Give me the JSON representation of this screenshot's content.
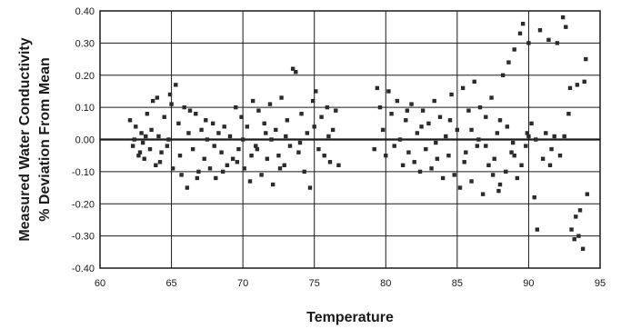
{
  "chart_data": {
    "type": "scatter",
    "title": "",
    "xlabel": "Temperature",
    "ylabel_lines": [
      "Measured Water Conductivity",
      "% Deviation From Mean"
    ],
    "xlim": [
      60,
      95
    ],
    "ylim": [
      -0.4,
      0.4
    ],
    "x_ticks": [
      60,
      65,
      70,
      75,
      80,
      85,
      90,
      95
    ],
    "x_tick_labels": [
      "60",
      "65",
      "70",
      "75",
      "80",
      "85",
      "90",
      "95"
    ],
    "y_ticks": [
      0.4,
      0.3,
      0.2,
      0.1,
      0.0,
      -0.1,
      -0.2,
      -0.3,
      -0.4
    ],
    "y_tick_labels": [
      "0.40",
      "0.30",
      "0.20",
      "0.10",
      "0.00",
      "-0.10",
      "-0.20",
      "-0.30",
      "-0.40"
    ],
    "grid": "both",
    "legend": "none",
    "marker_color": "#2b2b2b",
    "series": [
      {
        "points": [
          [
            62.1,
            0.06
          ],
          [
            62.3,
            -0.02
          ],
          [
            62.5,
            0.04
          ],
          [
            62.7,
            -0.05
          ],
          [
            62.9,
            0.02
          ],
          [
            63.1,
            -0.06
          ],
          [
            63.3,
            0.08
          ],
          [
            63.5,
            -0.03
          ],
          [
            63.7,
            0.12
          ],
          [
            63.9,
            -0.08
          ],
          [
            64.1,
            0.01
          ],
          [
            64.3,
            -0.04
          ],
          [
            64.5,
            0.07
          ],
          [
            64.7,
            -0.02
          ],
          [
            64.9,
            0.14
          ],
          [
            65.1,
            -0.09
          ],
          [
            65.3,
            0.17
          ],
          [
            65.5,
            0.05
          ],
          [
            65.7,
            -0.11
          ],
          [
            65.9,
            0.1
          ],
          [
            66.1,
            -0.15
          ],
          [
            66.3,
            0.09
          ],
          [
            66.5,
            -0.03
          ],
          [
            66.7,
            0.08
          ],
          [
            66.9,
            -0.1
          ],
          [
            67.1,
            0.03
          ],
          [
            67.3,
            -0.06
          ],
          [
            67.5,
            0.0
          ],
          [
            67.7,
            -0.09
          ],
          [
            67.9,
            0.05
          ],
          [
            68.1,
            -0.12
          ],
          [
            68.3,
            0.02
          ],
          [
            68.5,
            -0.04
          ],
          [
            68.7,
            0.04
          ],
          [
            68.9,
            -0.08
          ],
          [
            62.4,
            0.0
          ],
          [
            63.0,
            -0.01
          ],
          [
            63.6,
            0.03
          ],
          [
            64.2,
            -0.07
          ],
          [
            64.8,
            0.0
          ],
          [
            65.6,
            -0.05
          ],
          [
            66.2,
            0.02
          ],
          [
            66.8,
            -0.12
          ],
          [
            67.4,
            0.06
          ],
          [
            68.0,
            -0.02
          ],
          [
            68.6,
            -0.1
          ],
          [
            65.0,
            0.11
          ],
          [
            64.0,
            0.13
          ],
          [
            62.8,
            -0.04
          ],
          [
            63.2,
            0.01
          ],
          [
            69.1,
            0.01
          ],
          [
            69.3,
            -0.06
          ],
          [
            69.5,
            0.1
          ],
          [
            69.7,
            -0.03
          ],
          [
            69.9,
            0.07
          ],
          [
            70.1,
            -0.09
          ],
          [
            70.3,
            0.04
          ],
          [
            70.5,
            -0.13
          ],
          [
            70.7,
            0.12
          ],
          [
            70.9,
            -0.02
          ],
          [
            71.1,
            0.09
          ],
          [
            71.3,
            -0.11
          ],
          [
            71.5,
            0.05
          ],
          [
            71.7,
            -0.06
          ],
          [
            71.9,
            0.11
          ],
          [
            72.1,
            -0.14
          ],
          [
            72.3,
            0.03
          ],
          [
            72.5,
            -0.05
          ],
          [
            72.7,
            0.13
          ],
          [
            72.9,
            -0.08
          ],
          [
            73.1,
            0.06
          ],
          [
            73.3,
            -0.02
          ],
          [
            73.5,
            0.22
          ],
          [
            73.7,
            0.21
          ],
          [
            73.9,
            -0.04
          ],
          [
            74.1,
            0.08
          ],
          [
            74.3,
            -0.1
          ],
          [
            74.5,
            0.02
          ],
          [
            74.7,
            -0.15
          ],
          [
            74.9,
            0.12
          ],
          [
            75.1,
            0.15
          ],
          [
            75.3,
            -0.03
          ],
          [
            75.5,
            0.07
          ],
          [
            75.7,
            -0.05
          ],
          [
            75.9,
            0.1
          ],
          [
            76.1,
            -0.07
          ],
          [
            76.3,
            0.03
          ],
          [
            76.5,
            0.09
          ],
          [
            76.7,
            -0.08
          ],
          [
            70.0,
            0.0
          ],
          [
            71.0,
            -0.03
          ],
          [
            72.0,
            0.0
          ],
          [
            73.0,
            0.01
          ],
          [
            74.0,
            -0.01
          ],
          [
            75.0,
            0.04
          ],
          [
            76.0,
            0.01
          ],
          [
            69.6,
            -0.07
          ],
          [
            70.6,
            -0.05
          ],
          [
            71.6,
            0.02
          ],
          [
            72.6,
            -0.09
          ],
          [
            79.2,
            -0.03
          ],
          [
            79.4,
            0.16
          ],
          [
            79.6,
            0.1
          ],
          [
            79.8,
            0.03
          ],
          [
            80.0,
            -0.05
          ],
          [
            80.2,
            0.15
          ],
          [
            80.4,
            0.08
          ],
          [
            80.6,
            -0.02
          ],
          [
            80.8,
            0.12
          ],
          [
            81.0,
            0.0
          ],
          [
            81.2,
            -0.08
          ],
          [
            81.4,
            0.06
          ],
          [
            81.6,
            -0.04
          ],
          [
            81.8,
            0.11
          ],
          [
            82.0,
            -0.07
          ],
          [
            82.2,
            0.02
          ],
          [
            82.4,
            -0.1
          ],
          [
            82.6,
            0.09
          ],
          [
            82.8,
            -0.03
          ],
          [
            83.0,
            0.05
          ],
          [
            83.2,
            -0.09
          ],
          [
            83.4,
            0.12
          ],
          [
            83.6,
            -0.06
          ],
          [
            83.8,
            0.07
          ],
          [
            84.0,
            -0.12
          ],
          [
            84.2,
            0.01
          ],
          [
            84.4,
            -0.05
          ],
          [
            84.6,
            0.14
          ],
          [
            84.8,
            -0.11
          ],
          [
            85.0,
            0.03
          ],
          [
            85.2,
            -0.15
          ],
          [
            85.4,
            0.16
          ],
          [
            85.6,
            -0.04
          ],
          [
            85.8,
            0.09
          ],
          [
            86.0,
            -0.13
          ],
          [
            86.2,
            0.18
          ],
          [
            86.4,
            -0.02
          ],
          [
            86.6,
            0.1
          ],
          [
            86.8,
            -0.17
          ],
          [
            87.0,
            0.07
          ],
          [
            87.2,
            -0.08
          ],
          [
            87.4,
            0.13
          ],
          [
            87.6,
            -0.06
          ],
          [
            87.8,
            0.02
          ],
          [
            88.0,
            -0.14
          ],
          [
            88.2,
            0.2
          ],
          [
            88.4,
            -0.1
          ],
          [
            88.6,
            0.24
          ],
          [
            88.8,
            -0.04
          ],
          [
            89.0,
            0.28
          ],
          [
            89.2,
            -0.12
          ],
          [
            89.4,
            0.33
          ],
          [
            89.6,
            0.36
          ],
          [
            89.8,
            -0.02
          ],
          [
            90.0,
            0.3
          ],
          [
            90.2,
            0.05
          ],
          [
            90.4,
            -0.18
          ],
          [
            90.6,
            -0.28
          ],
          [
            90.8,
            0.34
          ],
          [
            91.0,
            -0.06
          ],
          [
            91.2,
            0.02
          ],
          [
            91.4,
            0.31
          ],
          [
            91.6,
            -0.03
          ],
          [
            91.8,
            0.01
          ],
          [
            92.0,
            0.3
          ],
          [
            92.2,
            -0.05
          ],
          [
            92.4,
            0.38
          ],
          [
            92.6,
            0.35
          ],
          [
            92.8,
            0.08
          ],
          [
            93.0,
            -0.28
          ],
          [
            93.2,
            -0.31
          ],
          [
            93.4,
            0.17
          ],
          [
            93.6,
            -0.22
          ],
          [
            93.8,
            -0.34
          ],
          [
            94.0,
            0.25
          ],
          [
            94.1,
            -0.17
          ],
          [
            93.9,
            0.18
          ],
          [
            93.5,
            -0.3
          ],
          [
            93.3,
            -0.24
          ],
          [
            92.9,
            0.16
          ],
          [
            81.5,
            0.09
          ],
          [
            82.5,
            0.04
          ],
          [
            83.5,
            -0.01
          ],
          [
            84.5,
            0.06
          ],
          [
            85.5,
            -0.07
          ],
          [
            86.5,
            0.0
          ],
          [
            87.5,
            -0.11
          ],
          [
            88.5,
            0.04
          ],
          [
            89.5,
            -0.08
          ],
          [
            90.5,
            0.0
          ],
          [
            86.0,
            0.03
          ],
          [
            87.0,
            -0.02
          ],
          [
            88.0,
            0.06
          ],
          [
            89.0,
            -0.05
          ],
          [
            90.0,
            0.01
          ],
          [
            91.5,
            -0.08
          ],
          [
            92.5,
            0.01
          ],
          [
            88.9,
            -0.01
          ],
          [
            89.9,
            0.02
          ],
          [
            87.9,
            -0.16
          ]
        ]
      }
    ]
  }
}
